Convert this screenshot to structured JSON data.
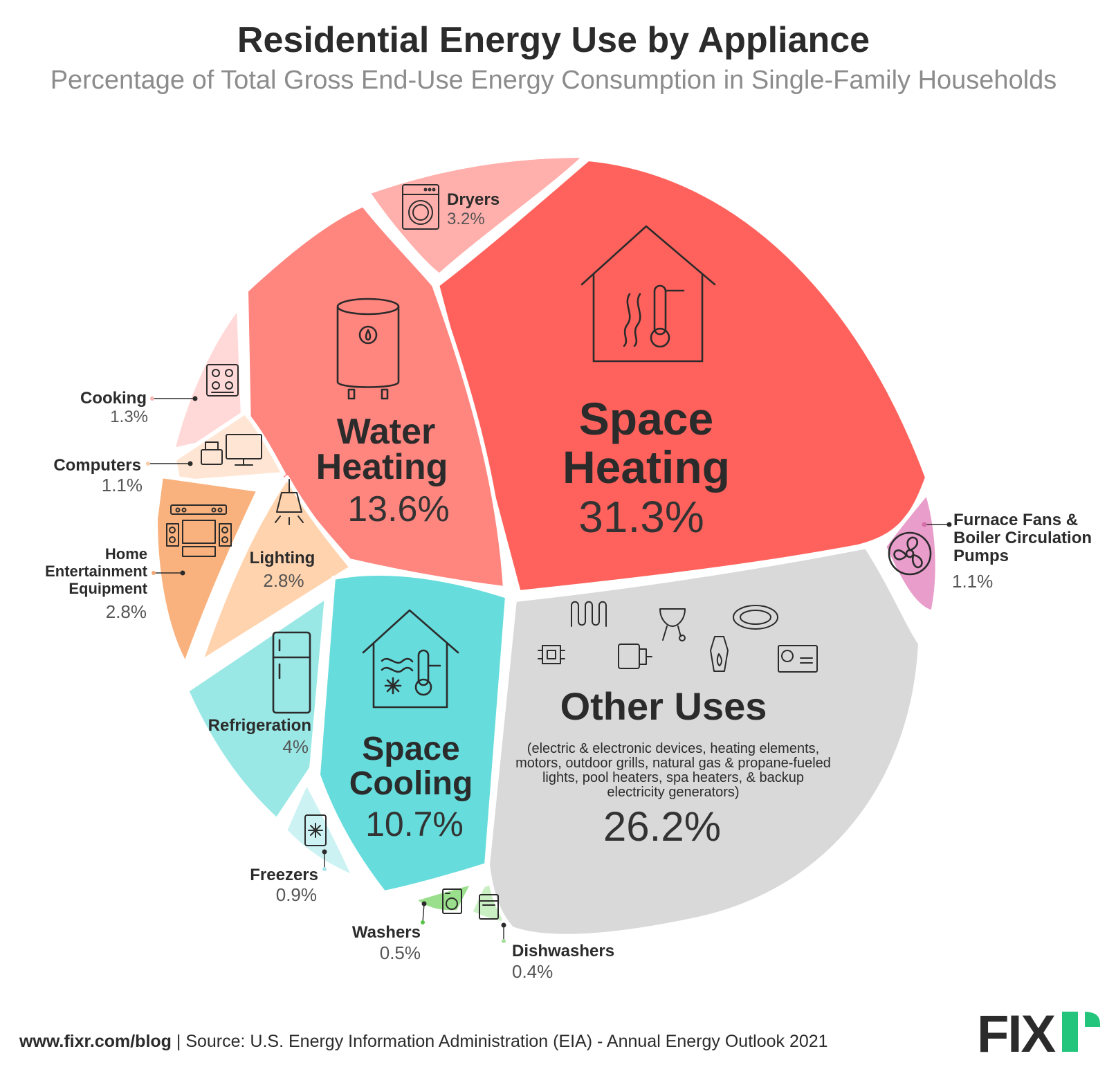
{
  "title": "Residential Energy Use by Appliance",
  "subtitle": "Percentage of Total Gross End-Use Energy Consumption in Single-Family Households",
  "footer": {
    "site": "www.fixr.com/blog",
    "separator": " | ",
    "source": "Source: U.S. Energy Information Administration (EIA) - Annual Energy Outlook 2021"
  },
  "logo": "FIXR",
  "chart_data": {
    "type": "voronoi-pie",
    "unit": "%",
    "series": [
      {
        "key": "space_heating",
        "label": [
          "Space",
          "Heating"
        ],
        "value": 31.3,
        "value_label": "31.3%",
        "color": "#FF625C",
        "icon": "house-heat-icon"
      },
      {
        "key": "other_uses",
        "label": [
          "Other Uses"
        ],
        "value": 26.2,
        "value_label": "26.2%",
        "color": "#D9D9D9",
        "icon": "misc-devices-icon",
        "description": [
          "(electric & electronic devices,  heating elements,",
          "motors, outdoor grills, natural gas & propane-fueled",
          "lights, pool heaters, spa heaters, & backup",
          "electricity generators)"
        ]
      },
      {
        "key": "water_heating",
        "label": [
          "Water",
          "Heating"
        ],
        "value": 13.6,
        "value_label": "13.6%",
        "color": "#FF857F",
        "icon": "water-heater-icon"
      },
      {
        "key": "space_cooling",
        "label": [
          "Space",
          "Cooling"
        ],
        "value": 10.7,
        "value_label": "10.7%",
        "color": "#66DCDC",
        "icon": "house-cool-icon"
      },
      {
        "key": "refrigeration",
        "label": [
          "Refrigeration"
        ],
        "value": 4,
        "value_label": "4%",
        "color": "#9AE8E6",
        "icon": "refrigerator-icon"
      },
      {
        "key": "dryers",
        "label": [
          "Dryers"
        ],
        "value": 3.2,
        "value_label": "3.2%",
        "color": "#FFB0AC",
        "icon": "dryer-icon"
      },
      {
        "key": "lighting",
        "label": [
          "Lighting"
        ],
        "value": 2.8,
        "value_label": "2.8%",
        "color": "#FFD3AD",
        "icon": "lamp-icon"
      },
      {
        "key": "home_entertainment",
        "label": [
          "Home",
          "Entertainment",
          "Equipment"
        ],
        "value": 2.8,
        "value_label": "2.8%",
        "color": "#F9B27E",
        "icon": "entertainment-icon"
      },
      {
        "key": "cooking",
        "label": [
          "Cooking"
        ],
        "value": 1.3,
        "value_label": "1.3%",
        "color": "#FFD9D8",
        "icon": "stove-icon"
      },
      {
        "key": "computers",
        "label": [
          "Computers"
        ],
        "value": 1.1,
        "value_label": "1.1%",
        "color": "#FFE6D4",
        "icon": "computer-icon"
      },
      {
        "key": "furnace_fans",
        "label": [
          "Furnace Fans &",
          "Boiler Circulation",
          "Pumps"
        ],
        "value": 1.1,
        "value_label": "1.1%",
        "color": "#E89DCB",
        "icon": "fan-icon"
      },
      {
        "key": "freezers",
        "label": [
          "Freezers"
        ],
        "value": 0.9,
        "value_label": "0.9%",
        "color": "#CDF2F3",
        "icon": "freezer-icon"
      },
      {
        "key": "washers",
        "label": [
          "Washers"
        ],
        "value": 0.5,
        "value_label": "0.5%",
        "color": "#9ADF8C",
        "icon": "washer-icon"
      },
      {
        "key": "dishwashers",
        "label": [
          "Dishwashers"
        ],
        "value": 0.4,
        "value_label": "0.4%",
        "color": "#C9EFC2",
        "icon": "dishwasher-icon"
      }
    ]
  },
  "colors": {
    "title": "#2b2b2b",
    "subtitle": "#8c8c8c",
    "text": "#2b2b2b",
    "dot_cooking": "#F4B6B3",
    "dot_computers": "#F7CDA9",
    "dot_entertainment": "#F3A873",
    "dot_fans": "#D66EA9",
    "dot_freezers": "#A8E4E6",
    "dot_washers": "#57C346",
    "dot_dishwashers": "#A6DD9C"
  }
}
